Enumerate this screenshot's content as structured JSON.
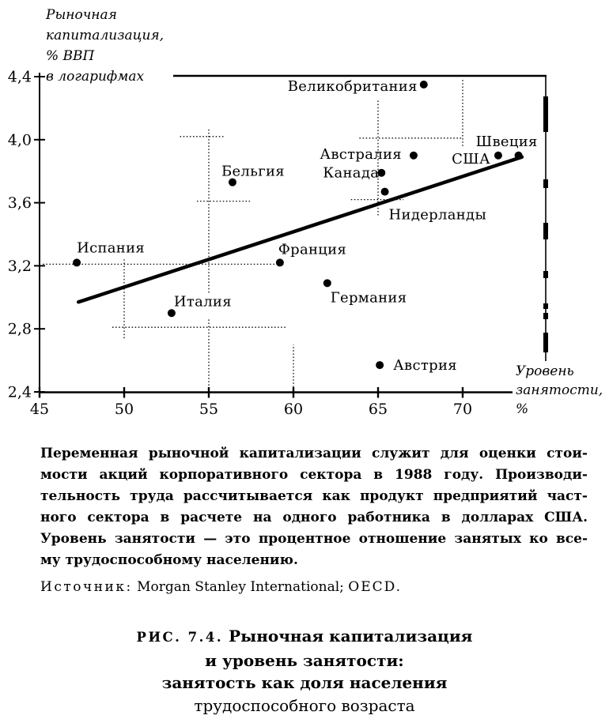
{
  "chart": {
    "y_title_lines": [
      "Рыночная",
      "капитализация,",
      "% ВВП",
      "в логарифмах"
    ],
    "x_title_lines": [
      "Уровень",
      "занятости,",
      "%"
    ]
  },
  "chart_data": {
    "type": "scatter",
    "title": "Рыночная капитализация и уровень занятости",
    "xlabel": "Уровень занятости, %",
    "ylabel": "Рыночная капитализация, % ВВП в логарифмах",
    "xlim": [
      45,
      74
    ],
    "ylim": [
      2.4,
      4.42
    ],
    "grid": "partial-dotted-segments",
    "legend": "none",
    "x_ticks": [
      45,
      50,
      55,
      60,
      65,
      70
    ],
    "x_tick_labels": [
      "45",
      "50",
      "55",
      "60",
      "65",
      "70"
    ],
    "y_ticks": [
      2.4,
      2.8,
      3.2,
      3.6,
      4.0,
      4.4
    ],
    "y_tick_labels": [
      "2,4",
      "2,8",
      "3,2",
      "3,6",
      "4,0",
      "4,4"
    ],
    "points": [
      {
        "name": "Испания",
        "x": 47.2,
        "y": 3.22
      },
      {
        "name": "Италия",
        "x": 52.8,
        "y": 2.9
      },
      {
        "name": "Бельгия",
        "x": 56.4,
        "y": 3.73
      },
      {
        "name": "Франция",
        "x": 59.2,
        "y": 3.22
      },
      {
        "name": "Германия",
        "x": 62.0,
        "y": 3.09
      },
      {
        "name": "Канада",
        "x": 65.2,
        "y": 3.79
      },
      {
        "name": "Нидерланды",
        "x": 65.4,
        "y": 3.67
      },
      {
        "name": "Австрия",
        "x": 65.1,
        "y": 2.57
      },
      {
        "name": "Австралия",
        "x": 67.1,
        "y": 3.9
      },
      {
        "name": "Великобритания",
        "x": 67.7,
        "y": 4.35
      },
      {
        "name": "США",
        "x": 72.1,
        "y": 3.9
      },
      {
        "name": "Швеция",
        "x": 73.3,
        "y": 3.9
      }
    ],
    "trend_line": {
      "x1": 47.3,
      "y1": 2.97,
      "x2": 73.5,
      "y2": 3.89
    },
    "dotted_segments": [
      {
        "dir": "v",
        "at": 50.0,
        "from": 2.74,
        "to": 3.24
      },
      {
        "dir": "v",
        "at": 55.0,
        "from": 3.03,
        "to": 4.07
      },
      {
        "dir": "v",
        "at": 55.0,
        "from": 2.42,
        "to": 2.86
      },
      {
        "dir": "v",
        "at": 60.0,
        "from": 2.41,
        "to": 2.7
      },
      {
        "dir": "v",
        "at": 65.0,
        "from": 3.52,
        "to": 4.25
      },
      {
        "dir": "v",
        "at": 70.0,
        "from": 3.96,
        "to": 4.39
      },
      {
        "dir": "h",
        "at": 4.02,
        "from": 53.3,
        "to": 55.9
      },
      {
        "dir": "h",
        "at": 4.01,
        "from": 63.9,
        "to": 70.0
      },
      {
        "dir": "h",
        "at": 3.61,
        "from": 54.3,
        "to": 57.5
      },
      {
        "dir": "h",
        "at": 3.62,
        "from": 63.4,
        "to": 66.5
      },
      {
        "dir": "h",
        "at": 3.21,
        "from": 45.2,
        "to": 58.9
      },
      {
        "dir": "h",
        "at": 2.81,
        "from": 49.3,
        "to": 59.6
      }
    ]
  },
  "notes": {
    "lines": [
      "Переменная рыночной капитализации служит для оценки стои-",
      "мости акций корпоративного сектора в 1988 году. Производи-",
      "тельность труда рассчитывается как продукт предприятий част-",
      "ного сектора в расчете на одного работника в долларах США.",
      "Уровень занятости — это процентное отношение занятых ко все-",
      "му трудоспособному населению."
    ]
  },
  "source": {
    "label": "Источник:",
    "body": " Morgan Stanley International; ",
    "org": "OECD."
  },
  "caption": {
    "fig_label": "РИС. 7.4.",
    "title_rest": "Рыночная капитализация",
    "line2": "и уровень занятости:",
    "line3": "занятость как доля населения",
    "line4": "трудоспособного возраста"
  }
}
